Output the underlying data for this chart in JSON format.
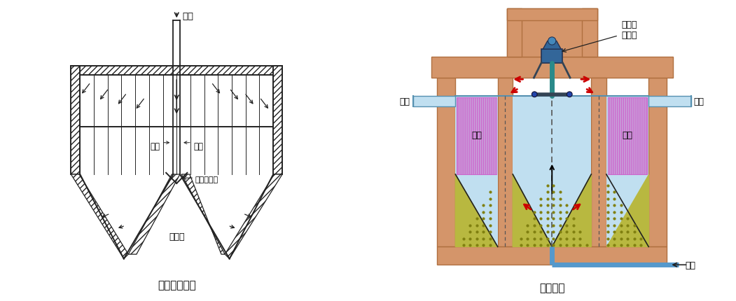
{
  "title_left": "空气侧面曝气",
  "title_right": "表面曝气",
  "bg_color": "#ffffff",
  "left_label_kongqi": "空气",
  "left_label_lvchuang1": "滤床",
  "left_label_lvchuang2": "滤床",
  "left_label_chuankong": "穿孔布气管",
  "left_label_wunidou": "污泥斗",
  "right_label_biaomian": "表面曝\n气装置",
  "right_label_tianliao1": "填料",
  "right_label_tianliao2": "填料",
  "right_label_chuliu_left": "出流",
  "right_label_chuliu_right": "出流",
  "right_label_yuanshui": "原水",
  "wall_color": "#222222",
  "water_color": "#c0dff0",
  "fill_color": "#c8a8dc",
  "fill_line_color": "#cc66cc",
  "sand_color": "#b8b840",
  "sand_dot_color": "#808010",
  "teal_color": "#2a8a8a",
  "motor_color": "#336699",
  "orange_color": "#d4956a",
  "orange_dark": "#b07040",
  "arrow_red": "#cc0000"
}
